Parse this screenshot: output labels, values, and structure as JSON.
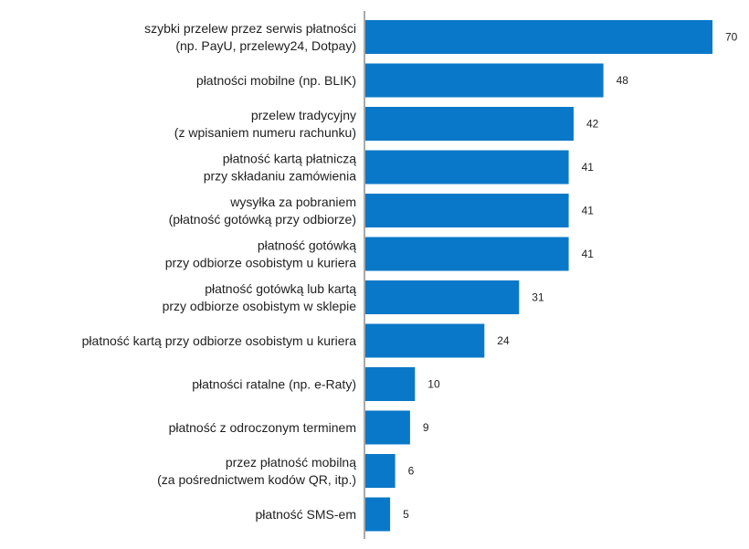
{
  "chart_data": {
    "type": "bar",
    "orientation": "horizontal",
    "title": "",
    "xlabel": "",
    "ylabel": "",
    "xlim": [
      0,
      70
    ],
    "grid": false,
    "legend": "none",
    "bar_color": "#0a78c8",
    "categories": [
      [
        "szybki przelew przez serwis płatności",
        "(np. PayU, przelewy24, Dotpay)"
      ],
      [
        "płatności mobilne (np. BLIK)"
      ],
      [
        "przelew tradycyjny",
        "(z wpisaniem numeru rachunku)"
      ],
      [
        "płatność kartą płatniczą",
        "przy składaniu zamówienia"
      ],
      [
        "wysyłka za pobraniem",
        "(płatność gotówką przy odbiorze)"
      ],
      [
        "płatność gotówką",
        "przy odbiorze osobistym u kuriera"
      ],
      [
        "płatność gotówką lub kartą",
        "przy odbiorze osobistym w sklepie"
      ],
      [
        "płatność kartą przy odbiorze osobistym u kuriera"
      ],
      [
        "płatności ratalne (np. e-Raty)"
      ],
      [
        "płatność z odroczonym terminem"
      ],
      [
        "przez płatność mobilną",
        "(za pośrednictwem kodów QR, itp.)"
      ],
      [
        "płatność SMS-em"
      ]
    ],
    "values": [
      70,
      48,
      42,
      41,
      41,
      41,
      31,
      24,
      10,
      9,
      6,
      5
    ]
  }
}
